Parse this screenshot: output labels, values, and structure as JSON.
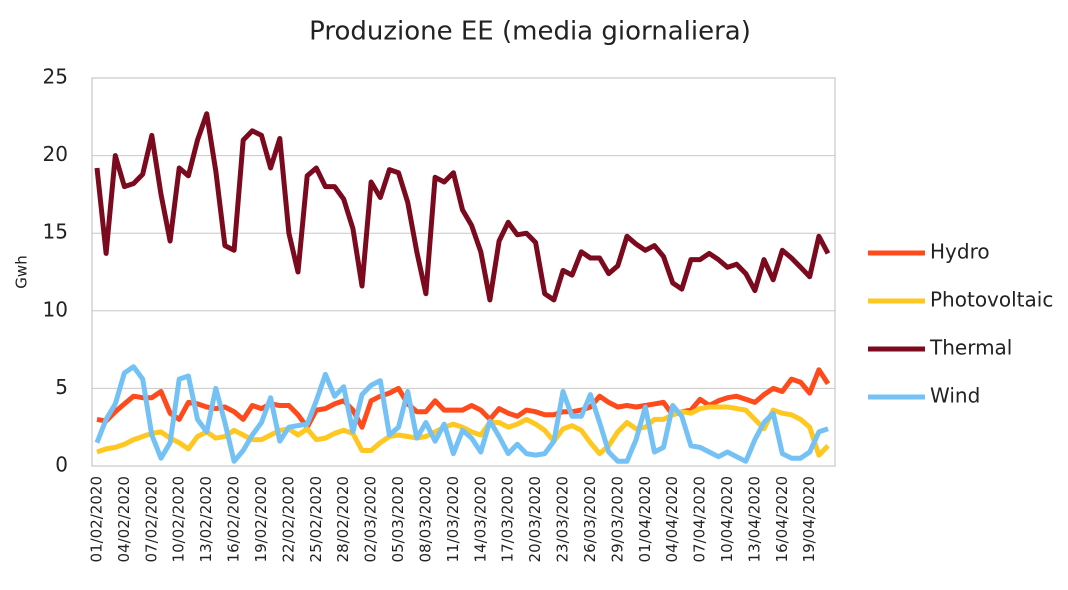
{
  "chart_data": {
    "type": "line",
    "title": "Produzione EE (media giornaliera)",
    "y_label": "Gwh",
    "categories": [
      "01/02/2020",
      null,
      null,
      "04/02/2020",
      null,
      null,
      "07/02/2020",
      null,
      null,
      "10/02/2020",
      null,
      null,
      "13/02/2020",
      null,
      null,
      "16/02/2020",
      null,
      null,
      "19/02/2020",
      null,
      null,
      "22/02/2020",
      null,
      null,
      "25/02/2020",
      null,
      null,
      "28/02/2020",
      null,
      null,
      "02/03/2020",
      null,
      null,
      "05/03/2020",
      null,
      null,
      "08/03/2020",
      null,
      null,
      "11/03/2020",
      null,
      null,
      "14/03/2020",
      null,
      null,
      "17/03/2020",
      null,
      null,
      "20/03/2020",
      null,
      null,
      "23/03/2020",
      null,
      null,
      "26/03/2020",
      null,
      null,
      "29/03/2020",
      null,
      null,
      "01/04/2020",
      null,
      null,
      "04/04/2020",
      null,
      null,
      "07/04/2020",
      null,
      null,
      "10/04/2020",
      null,
      null,
      "13/04/2020",
      null,
      null,
      "16/04/2020",
      null,
      null,
      "19/04/2020",
      null,
      null
    ],
    "series": [
      {
        "name": "Hydro",
        "color": "#ff4a1c",
        "values": [
          3.0,
          2.9,
          3.5,
          4.0,
          4.5,
          4.4,
          4.4,
          4.8,
          3.4,
          3.0,
          4.1,
          4.0,
          3.8,
          3.7,
          3.8,
          3.5,
          3.0,
          3.9,
          3.7,
          4.0,
          3.9,
          3.9,
          3.3,
          2.5,
          3.6,
          3.7,
          4.0,
          4.2,
          3.6,
          2.5,
          4.2,
          4.5,
          4.7,
          5.0,
          4.0,
          3.5,
          3.5,
          4.2,
          3.6,
          3.6,
          3.6,
          3.9,
          3.6,
          3.0,
          3.7,
          3.4,
          3.2,
          3.6,
          3.5,
          3.3,
          3.3,
          3.5,
          3.5,
          3.6,
          3.8,
          4.5,
          4.1,
          3.8,
          3.9,
          3.8,
          3.9,
          4.0,
          4.1,
          3.3,
          3.5,
          3.6,
          4.3,
          3.9,
          4.2,
          4.4,
          4.5,
          4.3,
          4.1,
          4.6,
          5.0,
          4.8,
          5.6,
          5.4,
          4.7,
          6.2,
          5.3
        ]
      },
      {
        "name": "Photovoltaic",
        "color": "#ffc820",
        "values": [
          0.9,
          1.1,
          1.2,
          1.4,
          1.7,
          1.9,
          2.1,
          2.2,
          1.8,
          1.5,
          1.1,
          1.9,
          2.2,
          1.8,
          1.9,
          2.3,
          2.0,
          1.7,
          1.7,
          2.0,
          2.3,
          2.4,
          2.0,
          2.4,
          1.7,
          1.8,
          2.1,
          2.3,
          2.1,
          1.0,
          1.0,
          1.5,
          1.9,
          2.0,
          1.9,
          1.8,
          1.9,
          2.2,
          2.5,
          2.7,
          2.5,
          2.2,
          2.0,
          2.8,
          2.8,
          2.5,
          2.7,
          3.0,
          2.7,
          2.3,
          1.6,
          2.4,
          2.6,
          2.3,
          1.5,
          0.8,
          1.3,
          2.2,
          2.8,
          2.4,
          2.5,
          3.0,
          3.0,
          3.3,
          3.5,
          3.4,
          3.7,
          3.8,
          3.8,
          3.8,
          3.7,
          3.6,
          3.0,
          2.4,
          3.6,
          3.4,
          3.3,
          3.0,
          2.5,
          0.7,
          1.3
        ]
      },
      {
        "name": "Thermal",
        "color": "#7b0a1e",
        "values": [
          19.2,
          13.7,
          20.0,
          18.0,
          18.2,
          18.8,
          21.3,
          17.5,
          14.5,
          19.2,
          18.7,
          21.0,
          22.7,
          19.0,
          14.2,
          13.9,
          21.0,
          21.6,
          21.3,
          19.2,
          21.1,
          15.0,
          12.5,
          18.7,
          19.2,
          18.0,
          18.0,
          17.2,
          15.3,
          11.6,
          18.3,
          17.3,
          19.1,
          18.9,
          17.0,
          13.8,
          11.1,
          18.6,
          18.3,
          18.9,
          16.5,
          15.5,
          13.8,
          10.7,
          14.5,
          15.7,
          14.9,
          15.0,
          14.4,
          11.1,
          10.7,
          12.6,
          12.3,
          13.8,
          13.4,
          13.4,
          12.4,
          12.9,
          14.8,
          14.3,
          13.9,
          14.2,
          13.5,
          11.8,
          11.4,
          13.3,
          13.3,
          13.7,
          13.3,
          12.8,
          13.0,
          12.4,
          11.3,
          13.3,
          12.0,
          13.9,
          13.4,
          12.8,
          12.2,
          14.8,
          13.7
        ]
      },
      {
        "name": "Wind",
        "color": "#74c2f5",
        "values": [
          1.5,
          3.0,
          4.0,
          6.0,
          6.4,
          5.6,
          2.0,
          0.5,
          1.5,
          5.6,
          5.8,
          3.0,
          2.2,
          5.0,
          2.8,
          0.3,
          1.0,
          2.0,
          2.8,
          4.4,
          1.6,
          2.5,
          2.6,
          2.7,
          4.2,
          5.9,
          4.5,
          5.1,
          2.2,
          4.6,
          5.2,
          5.5,
          2.0,
          2.5,
          4.8,
          1.8,
          2.8,
          1.6,
          2.7,
          0.8,
          2.3,
          1.8,
          0.9,
          2.9,
          1.9,
          0.8,
          1.4,
          0.8,
          0.7,
          0.8,
          1.6,
          4.8,
          3.2,
          3.2,
          4.6,
          2.8,
          0.9,
          0.3,
          0.3,
          1.7,
          3.8,
          0.9,
          1.2,
          3.9,
          3.2,
          1.3,
          1.2,
          0.9,
          0.6,
          0.9,
          0.6,
          0.3,
          1.7,
          2.8,
          3.4,
          0.8,
          0.5,
          0.5,
          0.9,
          2.2,
          2.4
        ]
      }
    ],
    "ylim": [
      0,
      25
    ],
    "yticks": [
      0,
      5,
      10,
      15,
      20,
      25
    ],
    "grid": true,
    "legend": "right"
  }
}
